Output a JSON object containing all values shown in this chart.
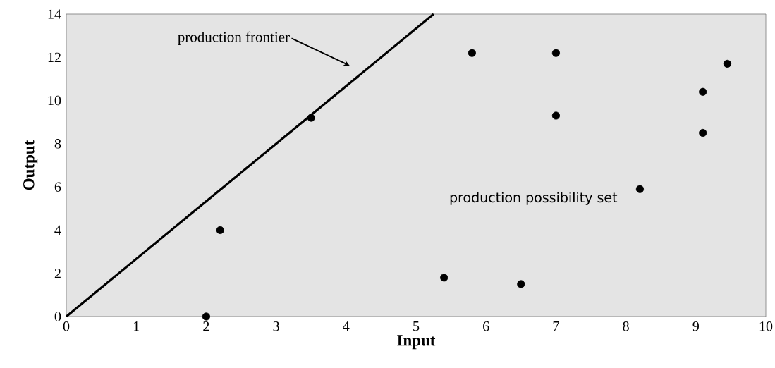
{
  "chart_data": {
    "type": "scatter",
    "xlabel": "Input",
    "ylabel": "Output",
    "xlim": [
      0,
      10
    ],
    "ylim": [
      0,
      14
    ],
    "xticks": [
      0,
      1,
      2,
      3,
      4,
      5,
      6,
      7,
      8,
      9,
      10
    ],
    "yticks": [
      0,
      2,
      4,
      6,
      8,
      10,
      12,
      14
    ],
    "marker": "circle",
    "series": [
      {
        "type": "line",
        "color": "#000000",
        "marker": "none",
        "line_style": "solid",
        "x": [
          0,
          5.25
        ],
        "values": [
          0,
          14
        ]
      },
      {
        "color": "#000000",
        "x": [
          2.0,
          2.2,
          3.5,
          5.4,
          5.8,
          6.5,
          7.0,
          7.0,
          8.2,
          9.1,
          9.1,
          9.45
        ],
        "values": [
          0,
          4,
          9.2,
          1.8,
          12.2,
          1.5,
          9.3,
          12.2,
          5.9,
          8.5,
          10.4,
          11.7
        ]
      }
    ],
    "annotations": [
      "production frontier",
      "production possibility set"
    ]
  }
}
